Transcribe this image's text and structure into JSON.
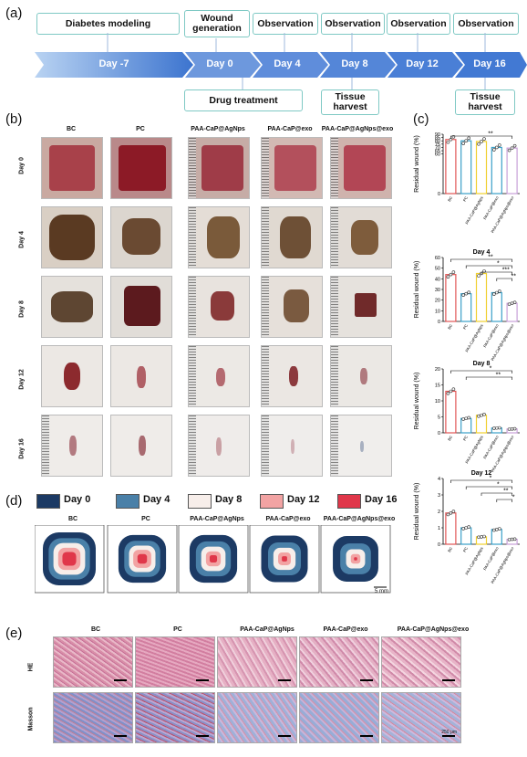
{
  "panel_labels": {
    "a": "(a)",
    "b": "(b)",
    "c": "(c)",
    "d": "(d)",
    "e": "(e)"
  },
  "timeline": {
    "top_boxes": [
      "Diabetes modeling",
      "Wound generation",
      "Observation",
      "Observation",
      "Observation",
      "Observation"
    ],
    "days": [
      "Day -7",
      "Day 0",
      "Day 4",
      "Day 8",
      "Day 12",
      "Day 16"
    ],
    "bottom_boxes": [
      "Drug treatment",
      "Tissue harvest",
      "Tissue harvest"
    ],
    "colors": {
      "arrow_light": "#a9c8ee",
      "arrow_dark": "#4a7fd6",
      "box_border": "#7fc9c4"
    }
  },
  "groups": [
    "BC",
    "PC",
    "PAA-CaP@AgNps",
    "PAA-CaP@exo",
    "PAA-CaP@AgNps@exo"
  ],
  "photo_rows": [
    "Day 0",
    "Day 4",
    "Day 8",
    "Day 12",
    "Day 16"
  ],
  "legend": [
    {
      "label": "Day 0",
      "color": "#1c3a64"
    },
    {
      "label": "Day 4",
      "color": "#4a80a8"
    },
    {
      "label": "Day 8",
      "color": "#f7eeea"
    },
    {
      "label": "Day 12",
      "color": "#f2a3a3"
    },
    {
      "label": "Day 16",
      "color": "#e0374a"
    }
  ],
  "schematic_scale": "5 mm",
  "histology": {
    "rows": [
      "HE",
      "Masson"
    ],
    "groups": [
      "BC",
      "PC",
      "PAA-CaP@AgNps",
      "PAA-CaP@exo",
      "PAA-CaP@AgNps@exo"
    ],
    "scale": "250 μm"
  },
  "chart_data": [
    {
      "type": "bar",
      "title": "",
      "ylabel": "Residual wound (%)",
      "categories": [
        "BC",
        "PC",
        "PAA-CaP@AgNps",
        "PAA-CaP@exo",
        "PAA-CaP@AgNps@exo"
      ],
      "values": [
        82,
        80,
        79,
        70,
        69
      ],
      "ylim": [
        0,
        90
      ],
      "yticks": [
        0,
        60,
        65,
        70,
        75,
        80,
        85,
        90
      ],
      "significance": [
        {
          "label": "**"
        }
      ],
      "colors": [
        "#e05555",
        "#3aa0c8",
        "#f0d030",
        "#3aa0c8",
        "#c8a0d8"
      ]
    },
    {
      "type": "bar",
      "title": "Day 4",
      "ylabel": "Residual wound (%)",
      "categories": [
        "BC",
        "PC",
        "PAA-CaP@AgNps",
        "PAA-CaP@exo",
        "PAA-CaP@AgNps@exo"
      ],
      "values": [
        44,
        26,
        45,
        27,
        17
      ],
      "ylim": [
        0,
        60
      ],
      "yticks": [
        0,
        10,
        20,
        30,
        40,
        50,
        60
      ],
      "significance": [
        {
          "label": "**"
        },
        {
          "label": "*"
        },
        {
          "label": "***"
        },
        {
          "label": "**"
        }
      ],
      "colors": [
        "#e05555",
        "#3aa0c8",
        "#f0d030",
        "#3aa0c8",
        "#c8a0d8"
      ]
    },
    {
      "type": "bar",
      "title": "Day 8",
      "ylabel": "Residual wound (%)",
      "categories": [
        "BC",
        "PC",
        "PAA-CaP@AgNps",
        "PAA-CaP@exo",
        "PAA-CaP@AgNps@exo"
      ],
      "values": [
        13,
        4.5,
        5.5,
        1.5,
        1.2
      ],
      "ylim": [
        0,
        20
      ],
      "yticks": [
        0,
        5,
        10,
        15,
        20
      ],
      "significance": [
        {
          "label": "*"
        },
        {
          "label": "**"
        }
      ],
      "colors": [
        "#e05555",
        "#3aa0c8",
        "#f0d030",
        "#3aa0c8",
        "#c8a0d8"
      ]
    },
    {
      "type": "bar",
      "title": "Day 12",
      "ylabel": "Residual wound (%)",
      "categories": [
        "BC",
        "PC",
        "PAA-CaP@AgNps",
        "PAA-CaP@exo",
        "PAA-CaP@AgNps@exo"
      ],
      "values": [
        1.9,
        1.0,
        0.45,
        0.9,
        0.3
      ],
      "ylim": [
        0,
        4
      ],
      "yticks": [
        0,
        1,
        2,
        3,
        4
      ],
      "significance": [
        {
          "label": "*"
        },
        {
          "label": "*"
        },
        {
          "label": "**"
        },
        {
          "label": "*"
        }
      ],
      "colors": [
        "#e05555",
        "#3aa0c8",
        "#f0d030",
        "#3aa0c8",
        "#c8a0d8"
      ]
    }
  ]
}
